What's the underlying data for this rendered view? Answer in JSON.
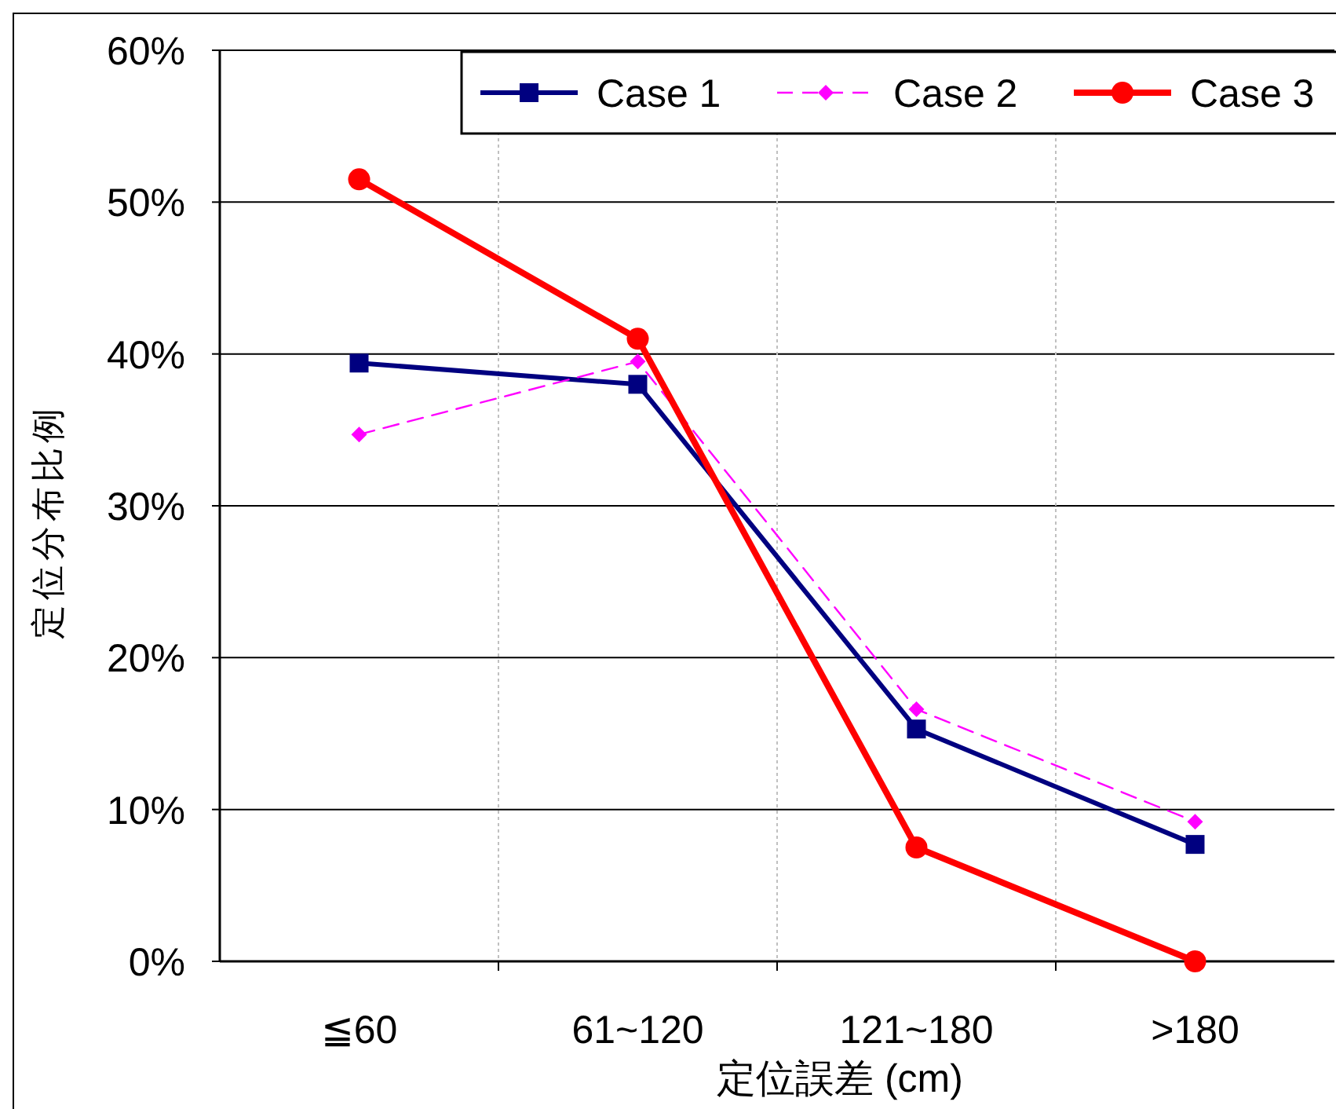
{
  "chart_data": {
    "type": "line",
    "xlabel": "定位誤差 (cm)",
    "ylabel": "定位分布比例",
    "categories": [
      "≦60",
      "61~120",
      "121~180",
      ">180"
    ],
    "series": [
      {
        "name": "Case 1",
        "color": "#000080",
        "marker": "square",
        "line_style": "solid",
        "values": [
          39.4,
          38.0,
          15.3,
          7.7
        ]
      },
      {
        "name": "Case 2",
        "color": "#ff00ff",
        "marker": "diamond",
        "line_style": "dashed",
        "values": [
          34.7,
          39.5,
          16.6,
          9.2
        ]
      },
      {
        "name": "Case 3",
        "color": "#ff0000",
        "marker": "circle",
        "line_style": "solid",
        "values": [
          51.5,
          41.0,
          7.5,
          0
        ]
      }
    ],
    "ylim": [
      0,
      60
    ],
    "yticks": [
      {
        "value": 0,
        "label": "0%"
      },
      {
        "value": 10,
        "label": "10%"
      },
      {
        "value": 20,
        "label": "20%"
      },
      {
        "value": 30,
        "label": "30%"
      },
      {
        "value": 40,
        "label": "40%"
      },
      {
        "value": 50,
        "label": "50%"
      },
      {
        "value": 60,
        "label": "60%"
      }
    ],
    "grid": true,
    "legend": "top right"
  }
}
